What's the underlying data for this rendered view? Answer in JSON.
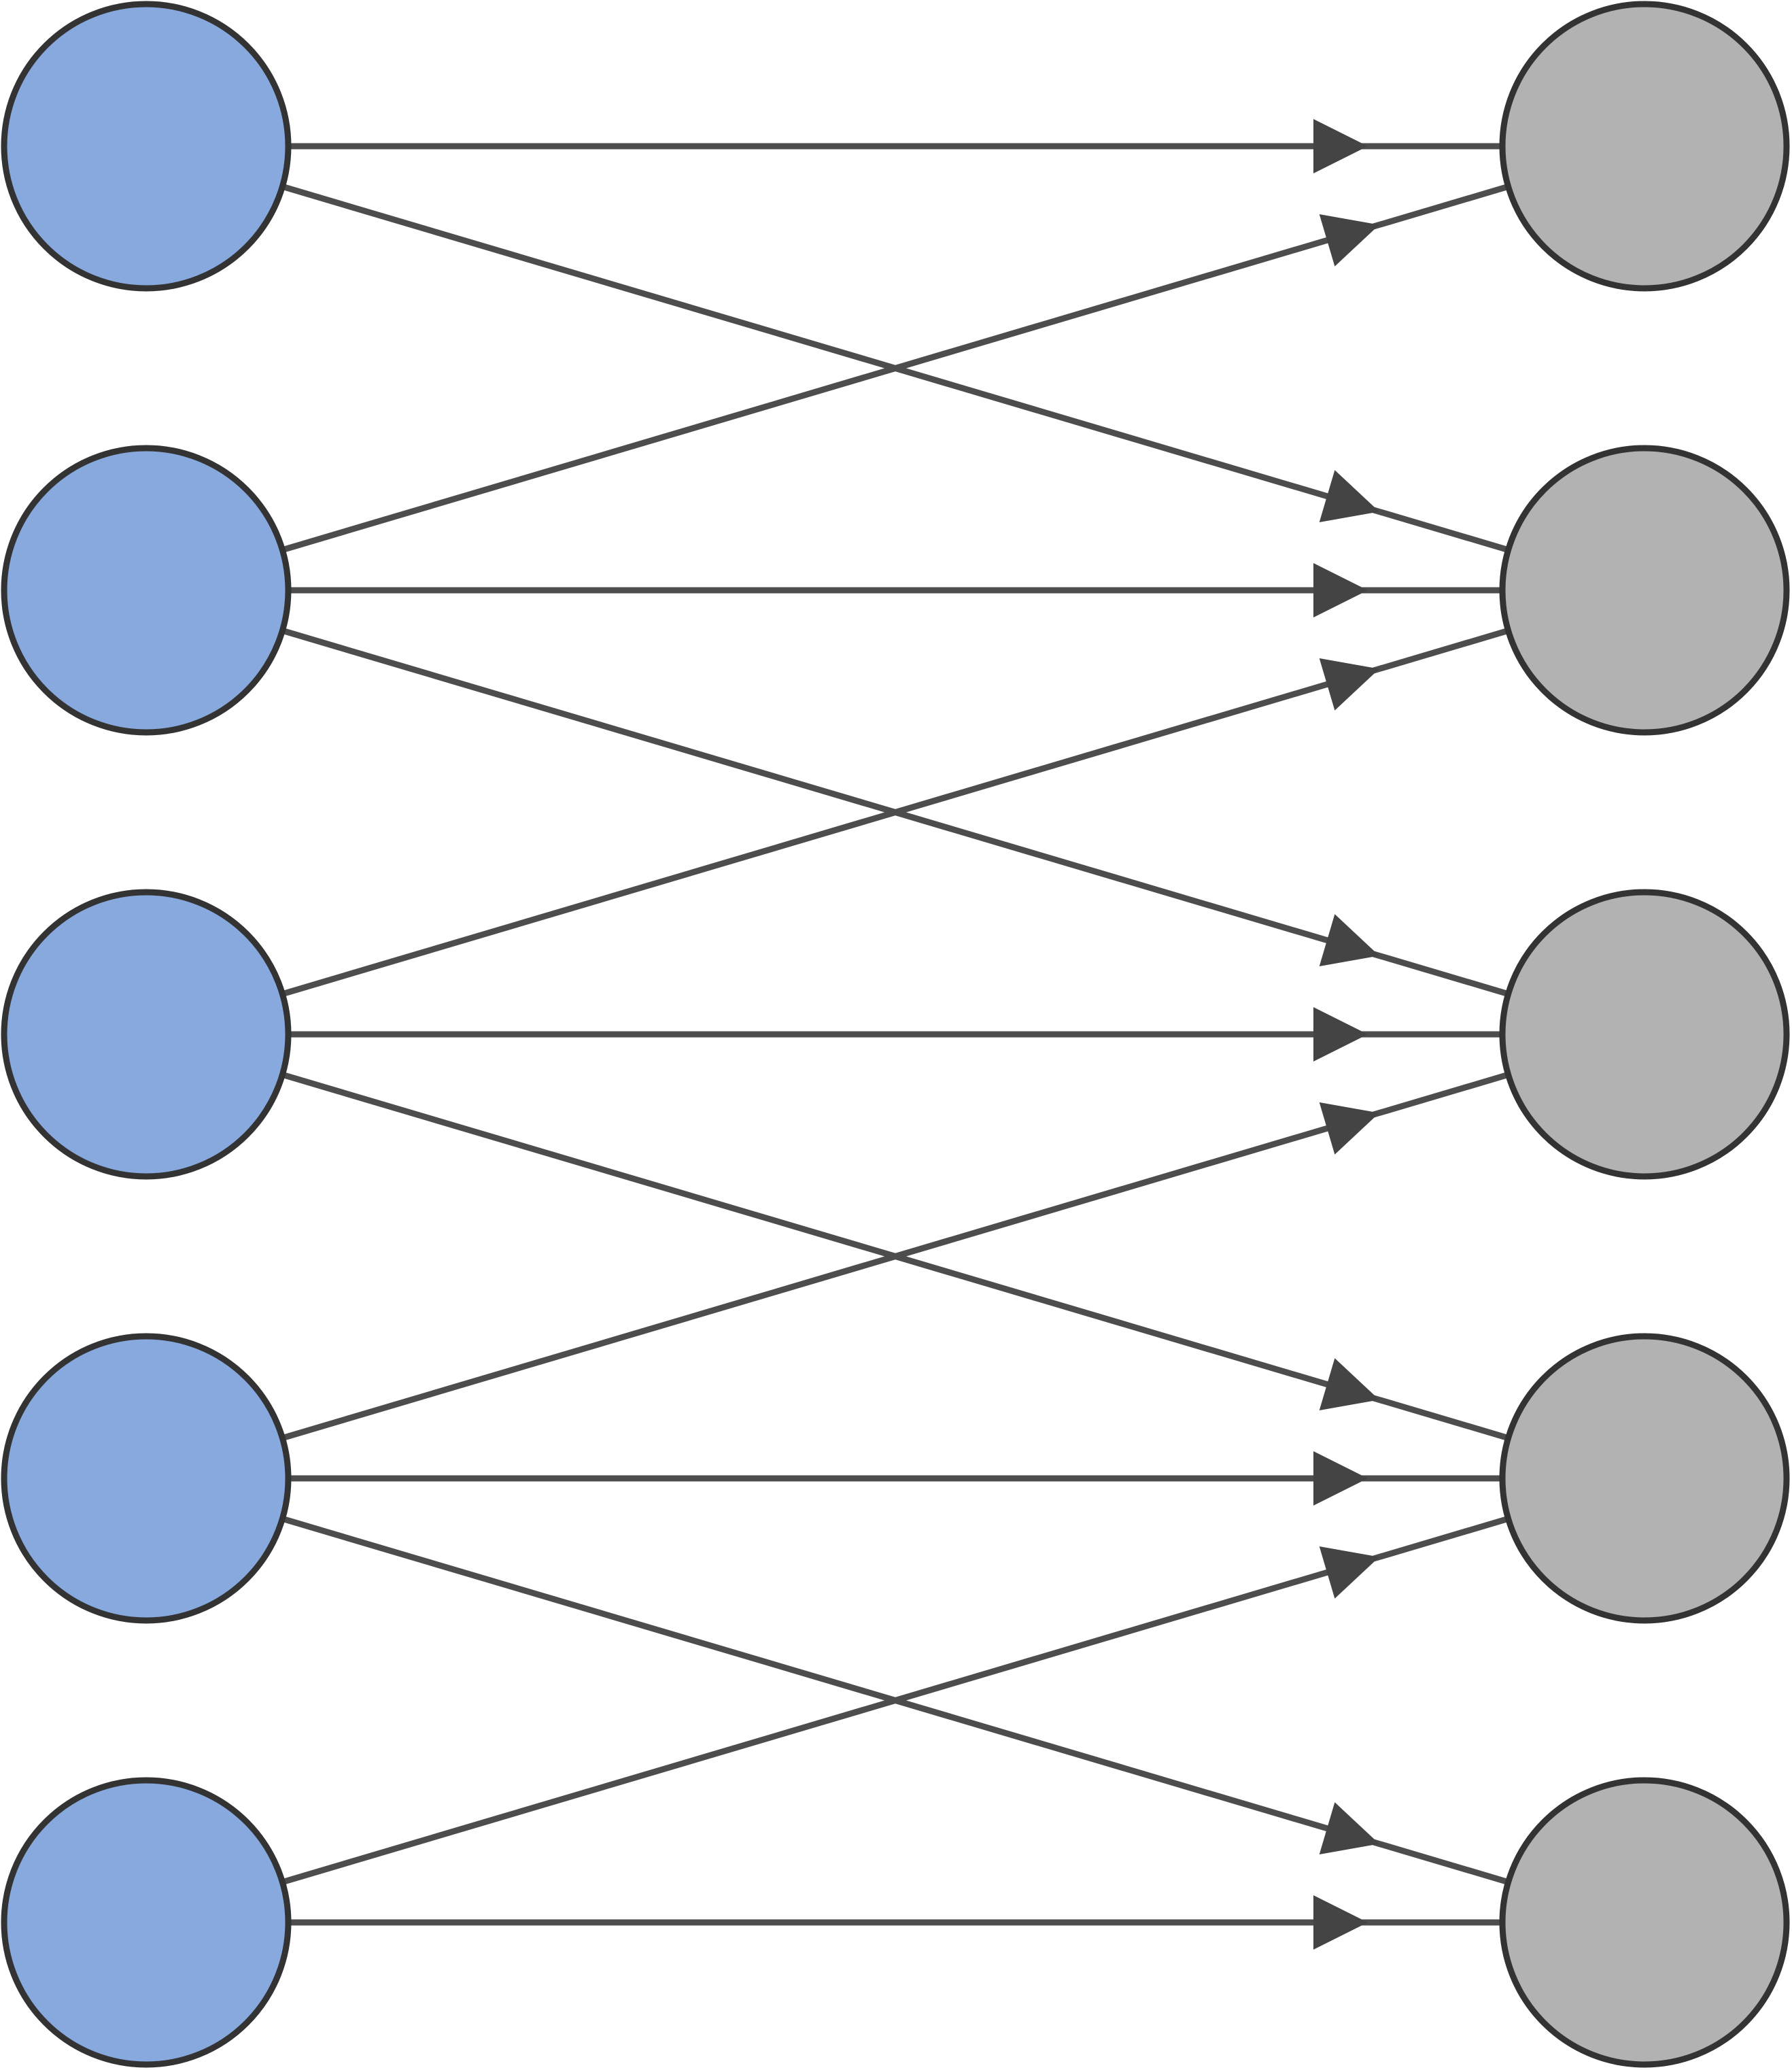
{
  "diagram": {
    "type": "bipartite-directed-graph",
    "colors": {
      "left_node_fill": "#87a9de",
      "right_node_fill": "#b2b2b2",
      "node_stroke": "#333333",
      "edge_stroke": "#4d4d4d",
      "arrow_fill": "#444444"
    },
    "left_nodes": [
      {
        "id": "L0",
        "label": ""
      },
      {
        "id": "L1",
        "label": ""
      },
      {
        "id": "L2",
        "label": ""
      },
      {
        "id": "L3",
        "label": ""
      },
      {
        "id": "L4",
        "label": ""
      }
    ],
    "right_nodes": [
      {
        "id": "R0",
        "label": ""
      },
      {
        "id": "R1",
        "label": ""
      },
      {
        "id": "R2",
        "label": ""
      },
      {
        "id": "R3",
        "label": ""
      },
      {
        "id": "R4",
        "label": ""
      }
    ],
    "edges": [
      {
        "from": "L0",
        "to": "R0"
      },
      {
        "from": "L0",
        "to": "R1"
      },
      {
        "from": "L1",
        "to": "R0"
      },
      {
        "from": "L1",
        "to": "R1"
      },
      {
        "from": "L1",
        "to": "R2"
      },
      {
        "from": "L2",
        "to": "R1"
      },
      {
        "from": "L2",
        "to": "R2"
      },
      {
        "from": "L2",
        "to": "R3"
      },
      {
        "from": "L3",
        "to": "R2"
      },
      {
        "from": "L3",
        "to": "R3"
      },
      {
        "from": "L3",
        "to": "R4"
      },
      {
        "from": "L4",
        "to": "R3"
      },
      {
        "from": "L4",
        "to": "R4"
      }
    ]
  }
}
